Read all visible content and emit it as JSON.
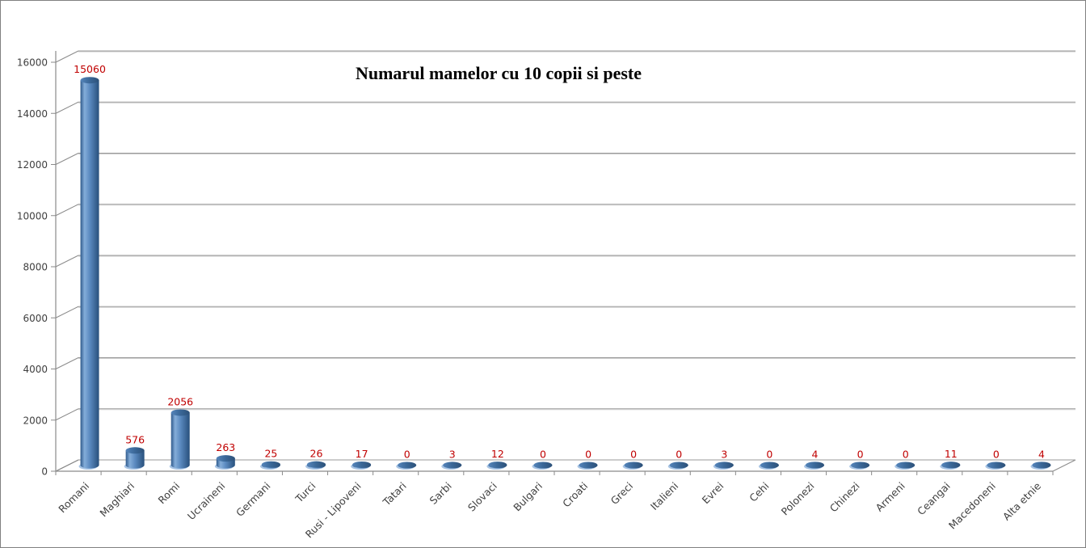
{
  "window": {
    "background_color": "#ffffff",
    "border_color": "#808080"
  },
  "chart_data": {
    "type": "bar",
    "subtype": "3d-cylinder",
    "title": "Numarul mamelor cu 10 copii si peste",
    "categories": [
      "Romani",
      "Maghiari",
      "Romi",
      "Ucraineni",
      "Germani",
      "Turci",
      "Rusi - Lipoveni",
      "Tatari",
      "Sarbi",
      "Slovaci",
      "Bulgari",
      "Croati",
      "Greci",
      "Italieni",
      "Evrei",
      "Cehi",
      "Polonezi",
      "Chinezi",
      "Armeni",
      "Ceangai",
      "Macedoneni",
      "Alta etnie"
    ],
    "values": [
      15060,
      576,
      2056,
      263,
      25,
      26,
      17,
      0,
      3,
      12,
      0,
      0,
      0,
      0,
      3,
      0,
      4,
      0,
      0,
      11,
      0,
      4
    ],
    "data_labels": [
      "15060",
      "576",
      "2056",
      "263",
      "25",
      "26",
      "17",
      "0",
      "3",
      "12",
      "0",
      "0",
      "0",
      "0",
      "3",
      "0",
      "4",
      "0",
      "0",
      "11",
      "0",
      "4"
    ],
    "xlabel": "",
    "ylabel": "",
    "ylim": [
      0,
      16000
    ],
    "ytick_step": 2000,
    "ytick_labels": [
      "0",
      "2000",
      "4000",
      "6000",
      "8000",
      "10000",
      "12000",
      "14000",
      "16000"
    ],
    "grid": true,
    "legend": false,
    "colors": {
      "bar_fill": "#4F81BD",
      "bar_body_gradient": [
        "#2f5a8c",
        "#84add9",
        "#5b8ac0",
        "#28507c"
      ],
      "bar_top_gradient": [
        "#5585bb",
        "#3a6797",
        "#2d5179"
      ],
      "bar_bottom_highlight": "#a8c4e4",
      "data_label": "#C00000",
      "gridline": "#9a9a9a",
      "gridline_highlight": "#cccccc",
      "axis_line": "#8a8a8a",
      "tick_label": "#3f3f3f",
      "title": "#000000"
    }
  }
}
